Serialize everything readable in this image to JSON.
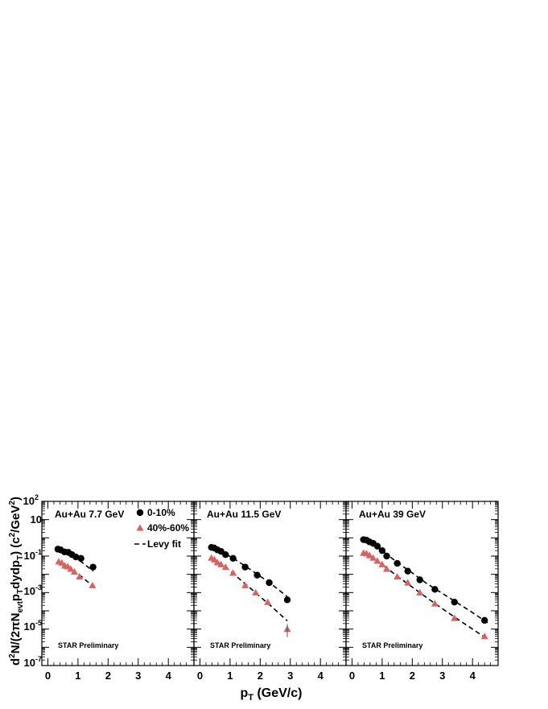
{
  "figure": {
    "ylabel_parts": [
      "d",
      "2",
      "N/(2πN",
      "evt",
      "p",
      "T",
      "dydp",
      "T",
      ") (c",
      "2",
      "/GeV",
      "2",
      ")"
    ],
    "xlabel_main": "p",
    "xlabel_sub": "T",
    "xlabel_rest": " (GeV/c)",
    "y_tick_labels": [
      {
        "base": "10",
        "exp": "2"
      },
      {
        "base": "10",
        "exp": ""
      },
      {
        "base": "10",
        "exp": "-1"
      },
      {
        "base": "10",
        "exp": "-3"
      },
      {
        "base": "10",
        "exp": "-5"
      },
      {
        "base": "10",
        "exp": "-7"
      }
    ],
    "y_tick_values": [
      2,
      1,
      -1,
      -3,
      -5,
      -7
    ],
    "legend": {
      "central": "0-10%",
      "peripheral": "40%-60%",
      "fit": "Levy fit"
    },
    "watermark": "STAR Preliminary",
    "colors": {
      "central": "#000000",
      "peripheral": "#d9615f",
      "fit": "#000000"
    }
  },
  "chart_data": [
    {
      "type": "scatter",
      "title": "Au+Au 7.7 GeV",
      "xlabel": "pT (GeV/c)",
      "ylabel": "d2N/(2πNevt pT dydpT) (c2/GeV2)",
      "yscale": "log",
      "xlim": [
        -0.2,
        4.85
      ],
      "ylim": [
        1e-07,
        100
      ],
      "x_ticks": [
        "0",
        "1",
        "2",
        "3",
        "4"
      ],
      "series": [
        {
          "name": "0-10%",
          "marker": "circle",
          "x": [
            0.33,
            0.42,
            0.55,
            0.68,
            0.8,
            0.93,
            1.1,
            1.5
          ],
          "y": [
            0.24,
            0.22,
            0.17,
            0.16,
            0.12,
            0.09,
            0.075,
            0.025
          ]
        },
        {
          "name": "40%-60%",
          "marker": "triangle",
          "x": [
            0.36,
            0.46,
            0.56,
            0.66,
            0.76,
            0.88,
            1.05,
            1.48
          ],
          "y": [
            0.05,
            0.043,
            0.03,
            0.027,
            0.02,
            0.014,
            0.0075,
            0.0025
          ]
        },
        {
          "name": "Levy fit",
          "marker": "dashed-line",
          "x": [
            0.33,
            0.7,
            1.1,
            1.5
          ],
          "y": [
            0.2,
            0.12,
            0.05,
            0.015
          ]
        },
        {
          "name": "Levy fit",
          "marker": "dashed-line",
          "x": [
            0.33,
            0.7,
            1.1,
            1.5
          ],
          "y": [
            0.045,
            0.022,
            0.008,
            0.0022
          ]
        }
      ]
    },
    {
      "type": "scatter",
      "title": "Au+Au 11.5 GeV",
      "xlabel": "pT (GeV/c)",
      "yscale": "log",
      "xlim": [
        -0.2,
        4.85
      ],
      "ylim": [
        1e-07,
        100
      ],
      "x_ticks": [
        "0",
        "1",
        "2",
        "3",
        "4"
      ],
      "series": [
        {
          "name": "0-10%",
          "marker": "circle",
          "x": [
            0.38,
            0.47,
            0.58,
            0.7,
            0.85,
            1.1,
            1.5,
            1.9,
            2.3,
            2.9
          ],
          "y": [
            0.3,
            0.28,
            0.22,
            0.18,
            0.12,
            0.075,
            0.025,
            0.009,
            0.0035,
            0.0004
          ]
        },
        {
          "name": "40%-60%",
          "marker": "triangle",
          "x": [
            0.38,
            0.48,
            0.58,
            0.7,
            0.85,
            1.1,
            1.5,
            1.85,
            2.25,
            2.9
          ],
          "y": [
            0.08,
            0.065,
            0.045,
            0.035,
            0.025,
            0.012,
            0.0025,
            0.001,
            0.0003,
            1e-05
          ]
        },
        {
          "name": "Levy fit",
          "marker": "dashed-line",
          "x": [
            0.38,
            0.8,
            1.2,
            1.6,
            2.0,
            2.4,
            2.9
          ],
          "y": [
            0.28,
            0.15,
            0.06,
            0.022,
            0.008,
            0.0027,
            0.0006
          ]
        },
        {
          "name": "Levy fit",
          "marker": "dashed-line",
          "x": [
            0.38,
            0.8,
            1.2,
            1.6,
            2.0,
            2.4,
            2.9
          ],
          "y": [
            0.075,
            0.03,
            0.008,
            0.0022,
            0.0006,
            0.00016,
            2.8e-05
          ]
        }
      ]
    },
    {
      "type": "scatter",
      "title": "Au+Au 39 GeV",
      "xlabel": "pT (GeV/c)",
      "yscale": "log",
      "xlim": [
        -0.2,
        4.85
      ],
      "ylim": [
        1e-07,
        100
      ],
      "x_ticks": [
        "0",
        "1",
        "2",
        "3",
        "4"
      ],
      "series": [
        {
          "name": "0-10%",
          "marker": "circle",
          "x": [
            0.38,
            0.48,
            0.58,
            0.7,
            0.84,
            1.0,
            1.15,
            1.5,
            1.85,
            2.25,
            2.75,
            3.4,
            4.4
          ],
          "y": [
            0.8,
            0.75,
            0.6,
            0.5,
            0.35,
            0.2,
            0.1,
            0.04,
            0.015,
            0.005,
            0.0015,
            0.0003,
            3e-05
          ]
        },
        {
          "name": "40%-60%",
          "marker": "triangle",
          "x": [
            0.38,
            0.48,
            0.58,
            0.7,
            0.84,
            1.0,
            1.15,
            1.5,
            1.85,
            2.25,
            2.75,
            3.4,
            4.4
          ],
          "y": [
            0.15,
            0.14,
            0.11,
            0.08,
            0.055,
            0.035,
            0.02,
            0.0075,
            0.0035,
            0.001,
            0.00025,
            4e-05,
            4e-06
          ]
        },
        {
          "name": "Levy fit",
          "marker": "dashed-line",
          "x": [
            0.38,
            1.0,
            1.5,
            2.0,
            2.5,
            3.0,
            3.5,
            4.0,
            4.5
          ],
          "y": [
            0.8,
            0.2,
            0.045,
            0.012,
            0.003,
            0.0009,
            0.00027,
            8e-05,
            2.2e-05
          ]
        },
        {
          "name": "Levy fit",
          "marker": "dashed-line",
          "x": [
            0.38,
            1.0,
            1.5,
            2.0,
            2.5,
            3.0,
            3.5,
            4.0,
            4.5
          ],
          "y": [
            0.15,
            0.035,
            0.008,
            0.002,
            0.0005,
            0.00013,
            3.5e-05,
            1e-05,
            2.8e-06
          ]
        }
      ]
    }
  ]
}
